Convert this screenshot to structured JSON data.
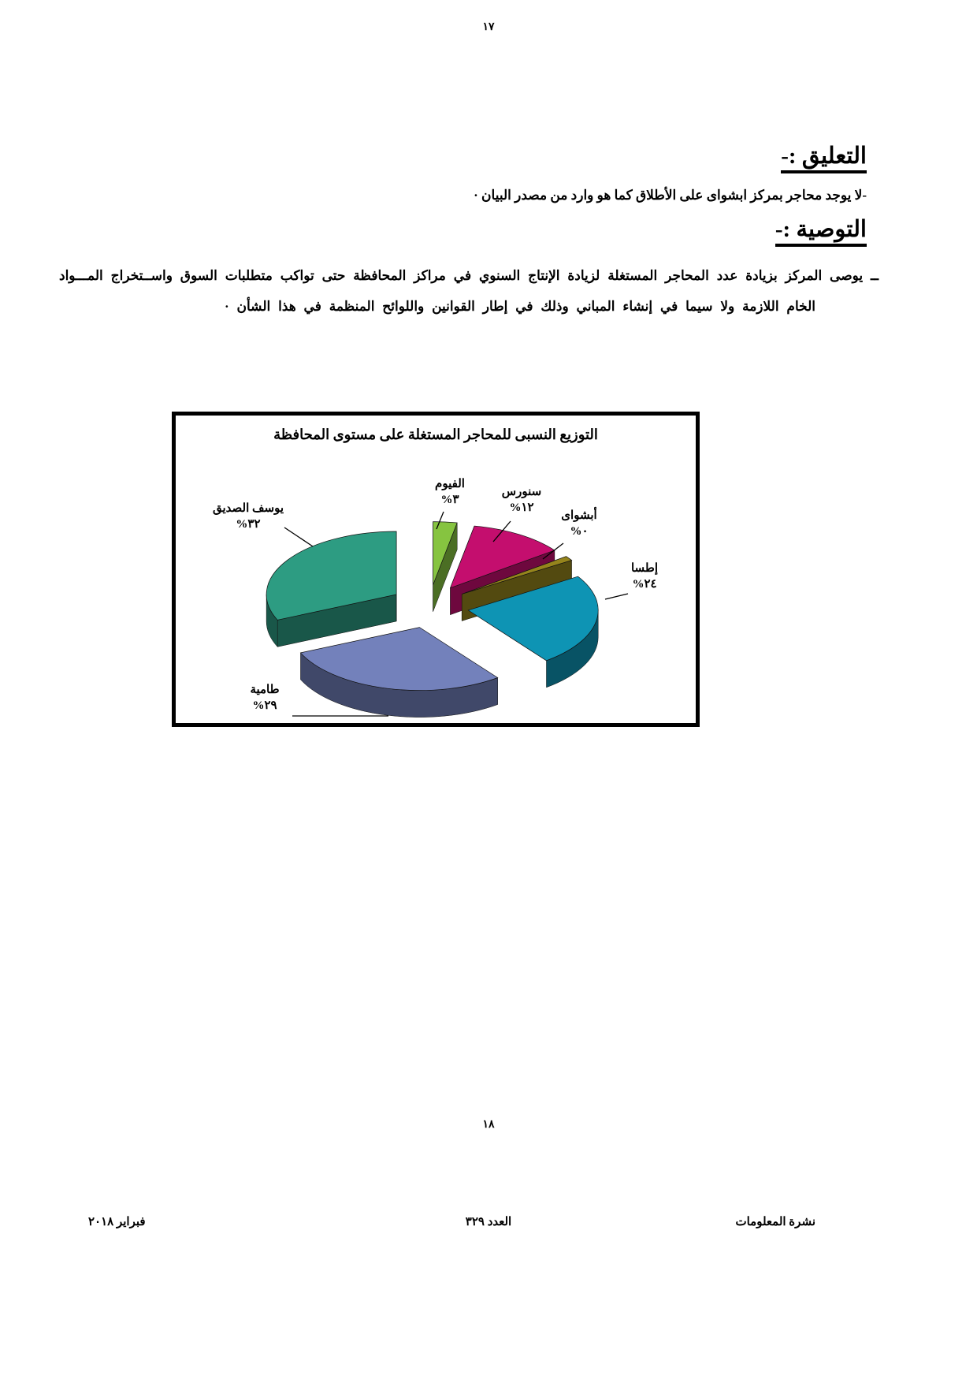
{
  "page": {
    "top_page_number": "١٧",
    "bottom_page_number": "١٨"
  },
  "comment": {
    "heading": "التعليق :-",
    "body": "-لا يوجد محاجر بمركز ابشواى على الأطلاق كما هو وارد من مصدر البيان ·"
  },
  "recommendation": {
    "heading": "التوصية :-",
    "line1": "ــ يوصى المركز بزيادة عدد المحاجر المستغلة لزيادة الإنتاج السنوي في مراكز المحافظة حتى تواكب متطلبات السوق واســتخراج المـــواد",
    "line2": "الخام اللازمة ولا سيما في إنشاء المباني وذلك في إطار القوانين واللوائح المنظمة في هذا الشأن ·"
  },
  "chart_data": {
    "type": "pie",
    "style": "3d-exploded",
    "title": "التوزيع النسبى للمحاجر المستغلة على مستوى المحافظة",
    "unit": "percent",
    "legend": "none",
    "labels_outside_with_leader_lines": true,
    "slices": [
      {
        "label": "الفيوم",
        "value": 3,
        "value_display": "%٣",
        "color": "#86c440"
      },
      {
        "label": "سنورس",
        "value": 12,
        "value_display": "%١٢",
        "color": "#c40e6e"
      },
      {
        "label": "أبشواى",
        "value": 0,
        "value_display": "%٠",
        "color": "#95841c"
      },
      {
        "label": "إطسا",
        "value": 24,
        "value_display": "%٢٤",
        "color": "#0e94b4"
      },
      {
        "label": "طامية",
        "value": 29,
        "value_display": "%٢٩",
        "color": "#7381bb"
      },
      {
        "label": "يوسف الصديق",
        "value": 32,
        "value_display": "%٣٢",
        "color": "#2d9c82"
      }
    ]
  },
  "footer": {
    "right": "نشرة المعلومات",
    "center": "العدد ٣٢٩",
    "left": "فبراير ٢٠١٨"
  }
}
